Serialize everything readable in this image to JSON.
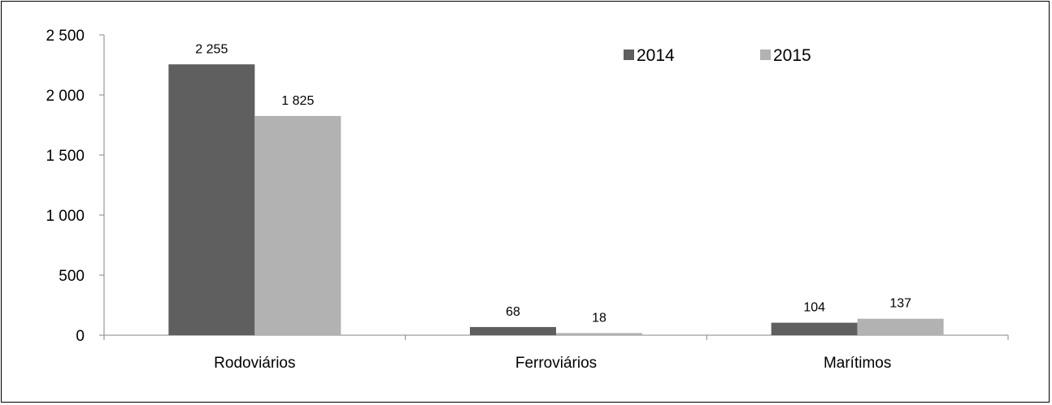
{
  "chart_data": {
    "type": "bar",
    "categories": [
      "Rodoviários",
      "Ferroviários",
      "Marítimos"
    ],
    "series": [
      {
        "name": "2014",
        "color": "#5f5f5f",
        "values": [
          2255,
          68,
          104
        ],
        "labels": [
          "2 255",
          "68",
          "104"
        ]
      },
      {
        "name": "2015",
        "color": "#b2b2b2",
        "values": [
          1825,
          18,
          137
        ],
        "labels": [
          "1 825",
          "18",
          "137"
        ]
      }
    ],
    "ylim": [
      0,
      2500
    ],
    "yticks": [
      0,
      500,
      1000,
      1500,
      2000,
      2500
    ],
    "ytick_labels": [
      "0",
      "500",
      "1 000",
      "1 500",
      "2 000",
      "2 500"
    ],
    "legend_position": "top-right",
    "grid": false
  }
}
